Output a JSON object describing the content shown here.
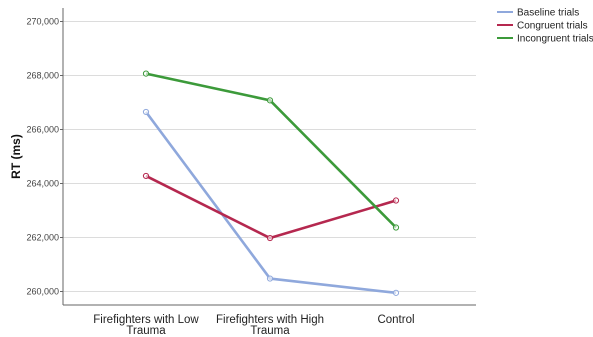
{
  "chart_data": {
    "type": "line",
    "title": "",
    "xlabel": "",
    "ylabel": "RT (ms)",
    "ylim": [
      259500,
      270500
    ],
    "yticks": [
      260000,
      262000,
      264000,
      266000,
      268000,
      270000
    ],
    "ytick_labels": [
      "260,000",
      "262,000",
      "264,000",
      "266,000",
      "268,000",
      "270,000"
    ],
    "categories": [
      [
        "Firefighters with Low",
        "Trauma"
      ],
      [
        "Firefighters with High",
        "Trauma"
      ],
      [
        "Control"
      ]
    ],
    "series": [
      {
        "name": "Baseline trials",
        "color": "#8fa8dc",
        "values": [
          266650,
          260480,
          259950
        ]
      },
      {
        "name": "Congruent trials",
        "color": "#b5284f",
        "values": [
          264280,
          261980,
          263370
        ]
      },
      {
        "name": "Incongruent trials",
        "color": "#3c9a3a",
        "values": [
          268070,
          267080,
          262370
        ]
      }
    ],
    "legend_position": "top-right",
    "grid": "horizontal"
  }
}
